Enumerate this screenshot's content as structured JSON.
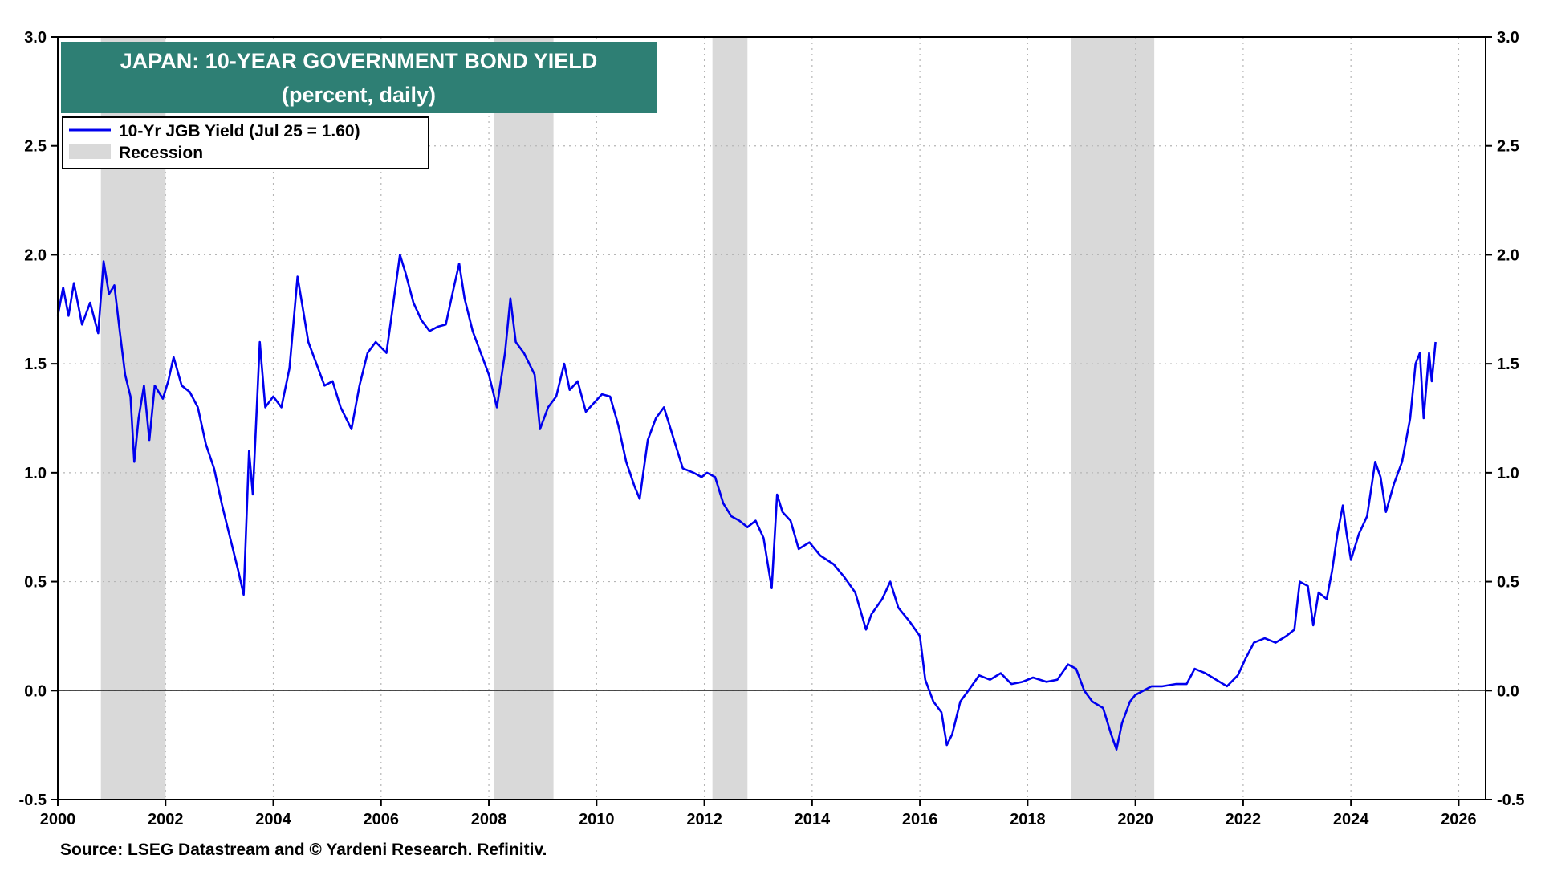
{
  "chart_data": {
    "type": "line",
    "title": "JAPAN: 10-YEAR GOVERNMENT BOND YIELD",
    "subtitle": "(percent, daily)",
    "source": "Source: LSEG Datastream and © Yardeni Research. Refinitiv.",
    "xlim": [
      2000,
      2026.5
    ],
    "ylim": [
      -0.5,
      3.0
    ],
    "x_ticks": [
      2000,
      2002,
      2004,
      2006,
      2008,
      2010,
      2012,
      2014,
      2016,
      2018,
      2020,
      2022,
      2024,
      2026
    ],
    "y_ticks": [
      -0.5,
      0.0,
      0.5,
      1.0,
      1.5,
      2.0,
      2.5,
      3.0
    ],
    "y_tick_labels": [
      "-0.5",
      "0.0",
      "0.5",
      "1.0",
      "1.5",
      "2.0",
      "2.5",
      "3.0"
    ],
    "grid": true,
    "legend_position": "top-left",
    "recessions": [
      [
        2000.8,
        2002.0
      ],
      [
        2008.1,
        2009.2
      ],
      [
        2012.15,
        2012.8
      ],
      [
        2018.8,
        2020.35
      ]
    ],
    "series": [
      {
        "name": "10-Yr JGB Yield (Jul 25 = 1.60)",
        "color": "#0000ee",
        "points": [
          [
            2000.0,
            1.72
          ],
          [
            2000.1,
            1.85
          ],
          [
            2000.2,
            1.72
          ],
          [
            2000.3,
            1.87
          ],
          [
            2000.45,
            1.68
          ],
          [
            2000.6,
            1.78
          ],
          [
            2000.75,
            1.64
          ],
          [
            2000.85,
            1.97
          ],
          [
            2000.95,
            1.82
          ],
          [
            2001.05,
            1.86
          ],
          [
            2001.15,
            1.65
          ],
          [
            2001.25,
            1.45
          ],
          [
            2001.35,
            1.35
          ],
          [
            2001.42,
            1.05
          ],
          [
            2001.5,
            1.25
          ],
          [
            2001.6,
            1.4
          ],
          [
            2001.7,
            1.15
          ],
          [
            2001.8,
            1.4
          ],
          [
            2001.95,
            1.34
          ],
          [
            2002.05,
            1.42
          ],
          [
            2002.15,
            1.53
          ],
          [
            2002.3,
            1.4
          ],
          [
            2002.45,
            1.37
          ],
          [
            2002.6,
            1.3
          ],
          [
            2002.75,
            1.13
          ],
          [
            2002.9,
            1.02
          ],
          [
            2003.05,
            0.85
          ],
          [
            2003.2,
            0.7
          ],
          [
            2003.35,
            0.55
          ],
          [
            2003.45,
            0.44
          ],
          [
            2003.55,
            1.1
          ],
          [
            2003.62,
            0.9
          ],
          [
            2003.75,
            1.6
          ],
          [
            2003.85,
            1.3
          ],
          [
            2004.0,
            1.35
          ],
          [
            2004.15,
            1.3
          ],
          [
            2004.3,
            1.48
          ],
          [
            2004.45,
            1.9
          ],
          [
            2004.55,
            1.75
          ],
          [
            2004.65,
            1.6
          ],
          [
            2004.8,
            1.5
          ],
          [
            2004.95,
            1.4
          ],
          [
            2005.1,
            1.42
          ],
          [
            2005.25,
            1.3
          ],
          [
            2005.45,
            1.2
          ],
          [
            2005.6,
            1.4
          ],
          [
            2005.75,
            1.55
          ],
          [
            2005.9,
            1.6
          ],
          [
            2006.1,
            1.55
          ],
          [
            2006.25,
            1.82
          ],
          [
            2006.35,
            2.0
          ],
          [
            2006.45,
            1.92
          ],
          [
            2006.6,
            1.78
          ],
          [
            2006.75,
            1.7
          ],
          [
            2006.9,
            1.65
          ],
          [
            2007.05,
            1.67
          ],
          [
            2007.2,
            1.68
          ],
          [
            2007.35,
            1.85
          ],
          [
            2007.45,
            1.96
          ],
          [
            2007.55,
            1.8
          ],
          [
            2007.7,
            1.65
          ],
          [
            2007.85,
            1.55
          ],
          [
            2008.0,
            1.45
          ],
          [
            2008.15,
            1.3
          ],
          [
            2008.3,
            1.55
          ],
          [
            2008.4,
            1.8
          ],
          [
            2008.5,
            1.6
          ],
          [
            2008.65,
            1.55
          ],
          [
            2008.75,
            1.5
          ],
          [
            2008.85,
            1.45
          ],
          [
            2008.95,
            1.2
          ],
          [
            2009.1,
            1.3
          ],
          [
            2009.25,
            1.35
          ],
          [
            2009.4,
            1.5
          ],
          [
            2009.5,
            1.38
          ],
          [
            2009.65,
            1.42
          ],
          [
            2009.8,
            1.28
          ],
          [
            2009.95,
            1.32
          ],
          [
            2010.1,
            1.36
          ],
          [
            2010.25,
            1.35
          ],
          [
            2010.4,
            1.22
          ],
          [
            2010.55,
            1.05
          ],
          [
            2010.7,
            0.94
          ],
          [
            2010.8,
            0.88
          ],
          [
            2010.95,
            1.15
          ],
          [
            2011.1,
            1.25
          ],
          [
            2011.25,
            1.3
          ],
          [
            2011.4,
            1.18
          ],
          [
            2011.6,
            1.02
          ],
          [
            2011.8,
            1.0
          ],
          [
            2011.95,
            0.98
          ],
          [
            2012.05,
            1.0
          ],
          [
            2012.2,
            0.98
          ],
          [
            2012.35,
            0.86
          ],
          [
            2012.5,
            0.8
          ],
          [
            2012.65,
            0.78
          ],
          [
            2012.8,
            0.75
          ],
          [
            2012.95,
            0.78
          ],
          [
            2013.1,
            0.7
          ],
          [
            2013.25,
            0.47
          ],
          [
            2013.35,
            0.9
          ],
          [
            2013.45,
            0.82
          ],
          [
            2013.6,
            0.78
          ],
          [
            2013.75,
            0.65
          ],
          [
            2013.95,
            0.68
          ],
          [
            2014.15,
            0.62
          ],
          [
            2014.4,
            0.58
          ],
          [
            2014.6,
            0.52
          ],
          [
            2014.8,
            0.45
          ],
          [
            2015.0,
            0.28
          ],
          [
            2015.1,
            0.35
          ],
          [
            2015.3,
            0.42
          ],
          [
            2015.45,
            0.5
          ],
          [
            2015.6,
            0.38
          ],
          [
            2015.8,
            0.32
          ],
          [
            2016.0,
            0.25
          ],
          [
            2016.1,
            0.05
          ],
          [
            2016.25,
            -0.05
          ],
          [
            2016.4,
            -0.1
          ],
          [
            2016.5,
            -0.25
          ],
          [
            2016.6,
            -0.2
          ],
          [
            2016.75,
            -0.05
          ],
          [
            2016.9,
            0.0
          ],
          [
            2017.1,
            0.07
          ],
          [
            2017.3,
            0.05
          ],
          [
            2017.5,
            0.08
          ],
          [
            2017.7,
            0.03
          ],
          [
            2017.9,
            0.04
          ],
          [
            2018.1,
            0.06
          ],
          [
            2018.35,
            0.04
          ],
          [
            2018.55,
            0.05
          ],
          [
            2018.75,
            0.12
          ],
          [
            2018.9,
            0.1
          ],
          [
            2019.05,
            0.0
          ],
          [
            2019.2,
            -0.05
          ],
          [
            2019.4,
            -0.08
          ],
          [
            2019.55,
            -0.2
          ],
          [
            2019.65,
            -0.27
          ],
          [
            2019.75,
            -0.15
          ],
          [
            2019.9,
            -0.05
          ],
          [
            2020.0,
            -0.02
          ],
          [
            2020.15,
            0.0
          ],
          [
            2020.3,
            0.02
          ],
          [
            2020.5,
            0.02
          ],
          [
            2020.75,
            0.03
          ],
          [
            2020.95,
            0.03
          ],
          [
            2021.1,
            0.1
          ],
          [
            2021.3,
            0.08
          ],
          [
            2021.5,
            0.05
          ],
          [
            2021.7,
            0.02
          ],
          [
            2021.9,
            0.07
          ],
          [
            2022.05,
            0.15
          ],
          [
            2022.2,
            0.22
          ],
          [
            2022.4,
            0.24
          ],
          [
            2022.6,
            0.22
          ],
          [
            2022.8,
            0.25
          ],
          [
            2022.95,
            0.28
          ],
          [
            2023.05,
            0.5
          ],
          [
            2023.2,
            0.48
          ],
          [
            2023.3,
            0.3
          ],
          [
            2023.4,
            0.45
          ],
          [
            2023.55,
            0.42
          ],
          [
            2023.65,
            0.55
          ],
          [
            2023.75,
            0.72
          ],
          [
            2023.85,
            0.85
          ],
          [
            2023.92,
            0.72
          ],
          [
            2024.0,
            0.6
          ],
          [
            2024.15,
            0.72
          ],
          [
            2024.3,
            0.8
          ],
          [
            2024.45,
            1.05
          ],
          [
            2024.55,
            0.98
          ],
          [
            2024.65,
            0.82
          ],
          [
            2024.8,
            0.95
          ],
          [
            2024.95,
            1.05
          ],
          [
            2025.1,
            1.25
          ],
          [
            2025.2,
            1.5
          ],
          [
            2025.28,
            1.55
          ],
          [
            2025.35,
            1.25
          ],
          [
            2025.45,
            1.55
          ],
          [
            2025.5,
            1.42
          ],
          [
            2025.57,
            1.6
          ]
        ]
      }
    ],
    "recession_label": "Recession",
    "recession_color": "#d9d9d9"
  },
  "colors": {
    "title_box": "#2e7f74",
    "title_text": "#ffffff",
    "line": "#0000ee"
  }
}
